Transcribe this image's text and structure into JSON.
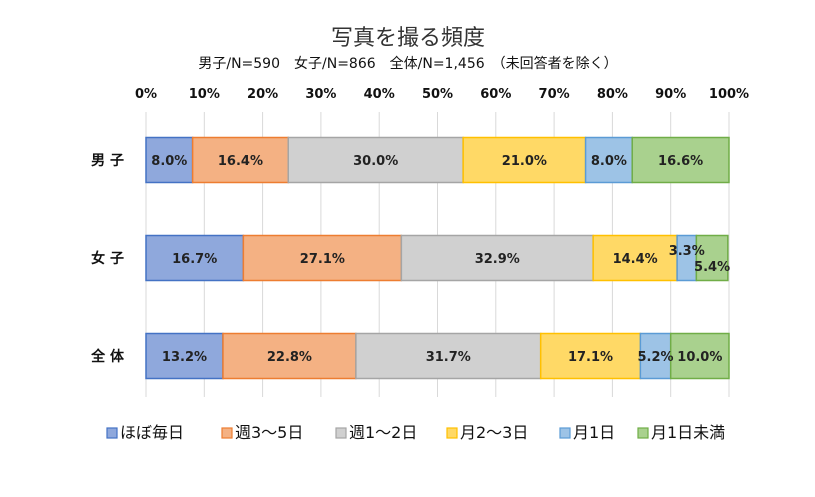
{
  "chart_data": {
    "type": "bar",
    "orientation": "horizontal",
    "stacked": "percent",
    "title": "写真を撮る頻度",
    "subtitle": "男子/N=590　女子/N=866　全体/N=1,456　（未回答者を除く）",
    "categories": [
      "男 子",
      "女 子",
      "全 体"
    ],
    "xlim": [
      0,
      100
    ],
    "x_ticks": [
      "0%",
      "10%",
      "20%",
      "30%",
      "40%",
      "50%",
      "60%",
      "70%",
      "80%",
      "90%",
      "100%"
    ],
    "grid": true,
    "legend_position": "bottom",
    "series": [
      {
        "name": "ほぼ毎日",
        "color": "#8FA8DC",
        "stroke": "#4472C4",
        "values": [
          8.0,
          16.7,
          13.2
        ],
        "labels": [
          "8.0%",
          "16.7%",
          "13.2%"
        ]
      },
      {
        "name": "週3～5日",
        "color": "#F4B183",
        "stroke": "#ED7D31",
        "values": [
          16.4,
          27.1,
          22.8
        ],
        "labels": [
          "16.4%",
          "27.1%",
          "22.8%"
        ]
      },
      {
        "name": "週1～2日",
        "color": "#D0D0D0",
        "stroke": "#A5A5A5",
        "values": [
          30.0,
          32.9,
          31.7
        ],
        "labels": [
          "30.0%",
          "32.9%",
          "31.7%"
        ]
      },
      {
        "name": "月2～3日",
        "color": "#FFD966",
        "stroke": "#FFC000",
        "values": [
          21.0,
          14.4,
          17.1
        ],
        "labels": [
          "21.0%",
          "14.4%",
          "17.1%"
        ]
      },
      {
        "name": "月1日",
        "color": "#9DC3E6",
        "stroke": "#5B9BD5",
        "values": [
          8.0,
          3.3,
          5.2
        ],
        "labels": [
          "8.0%",
          "3.3%",
          "5.2%"
        ]
      },
      {
        "name": "月1日未満",
        "color": "#A9D18E",
        "stroke": "#70AD47",
        "values": [
          16.6,
          5.4,
          10.0
        ],
        "labels": [
          "16.6%",
          "5.4%",
          "10.0%"
        ]
      }
    ]
  }
}
